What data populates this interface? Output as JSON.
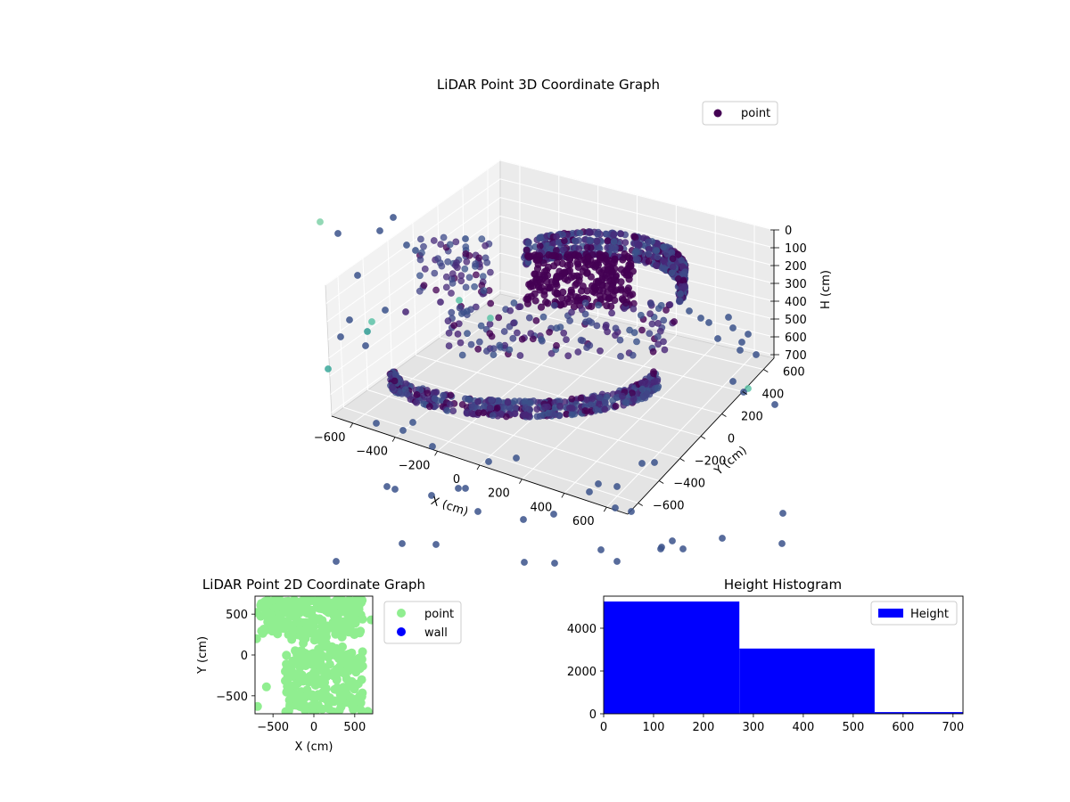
{
  "chart_data": [
    {
      "type": "scatter3d",
      "title": "LiDAR Point 3D Coordinate Graph",
      "xlabel": "X (cm)",
      "ylabel": "Y (cm)",
      "zlabel": "H (cm)",
      "x_ticks": [
        "−600",
        "−400",
        "−200",
        "0",
        "200",
        "400",
        "600"
      ],
      "y_ticks": [
        "−600",
        "−400",
        "−200",
        "0",
        "200",
        "400",
        "600"
      ],
      "z_ticks": [
        "0",
        "100",
        "200",
        "300",
        "400",
        "500",
        "600",
        "700"
      ],
      "xlim": [
        -700,
        700
      ],
      "ylim": [
        -700,
        700
      ],
      "zlim": [
        0,
        720
      ],
      "z_inverted": true,
      "legend": {
        "entries": [
          "point"
        ],
        "location": "top-right"
      },
      "colormap": "viridis",
      "grid": true
    },
    {
      "type": "scatter",
      "title": "LiDAR Point 2D Coordinate Graph",
      "xlabel": "X (cm)",
      "ylabel": "Y (cm)",
      "x_ticks": [
        "−500",
        "0",
        "500"
      ],
      "y_ticks": [
        "−500",
        "0",
        "500"
      ],
      "xlim": [
        -720,
        720
      ],
      "ylim": [
        -720,
        720
      ],
      "series": [
        {
          "name": "point",
          "color": "#90ee90"
        },
        {
          "name": "wall",
          "color": "#0000ff"
        }
      ],
      "legend": {
        "location": "outside-right"
      }
    },
    {
      "type": "bar",
      "title": "Height Histogram",
      "series": [
        {
          "name": "Height",
          "color": "#0000ff",
          "bins": [
            {
              "from": 0,
              "to": 272,
              "count": 5250
            },
            {
              "from": 272,
              "to": 543,
              "count": 3050
            },
            {
              "from": 543,
              "to": 720,
              "count": 80
            }
          ]
        }
      ],
      "x_ticks": [
        "0",
        "100",
        "200",
        "300",
        "400",
        "500",
        "600",
        "700"
      ],
      "y_ticks": [
        "0",
        "2000",
        "4000"
      ],
      "xlim": [
        0,
        720
      ],
      "ylim": [
        0,
        5500
      ],
      "legend": {
        "location": "top-right"
      }
    }
  ]
}
